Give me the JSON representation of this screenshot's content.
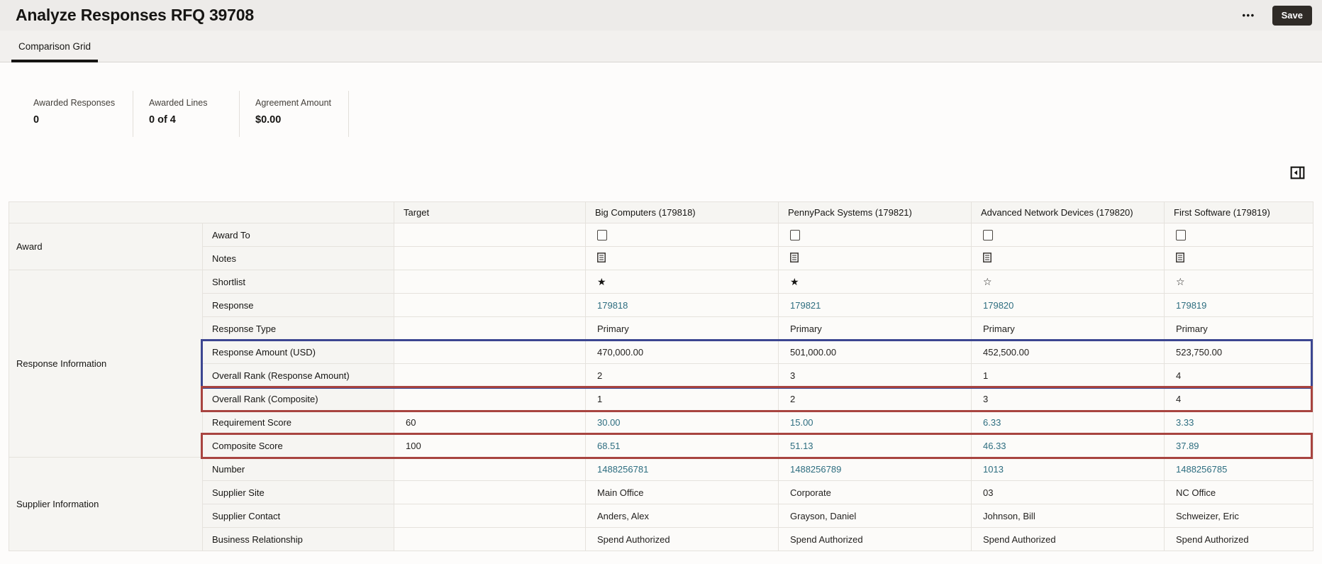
{
  "header": {
    "title": "Analyze Responses RFQ 39708",
    "more_label": "•••",
    "save_label": "Save"
  },
  "tabs": [
    {
      "label": "Comparison Grid",
      "active": true
    }
  ],
  "stats": [
    {
      "label": "Awarded Responses",
      "value": "0"
    },
    {
      "label": "Awarded Lines",
      "value": "0 of 4"
    },
    {
      "label": "Agreement Amount",
      "value": "$0.00"
    }
  ],
  "grid": {
    "columns": [
      "Target",
      "Big Computers (179818)",
      "PennyPack Systems (179821)",
      "Advanced Network Devices (179820)",
      "First Software (179819)"
    ],
    "groups": [
      {
        "label": "Award",
        "span": 2
      },
      {
        "label": "Response Information",
        "span": 8
      },
      {
        "label": "Supplier Information",
        "span": 4
      }
    ],
    "rows": [
      {
        "label": "Award To",
        "type": "checkbox",
        "target": "",
        "values": [
          "",
          "",
          "",
          ""
        ]
      },
      {
        "label": "Notes",
        "type": "note",
        "target": "",
        "values": [
          "",
          "",
          "",
          ""
        ]
      },
      {
        "label": "Shortlist",
        "type": "star",
        "target": "",
        "values": [
          true,
          true,
          false,
          false
        ]
      },
      {
        "label": "Response",
        "type": "link",
        "target": "",
        "values": [
          "179818",
          "179821",
          "179820",
          "179819"
        ]
      },
      {
        "label": "Response Type",
        "type": "text",
        "target": "",
        "values": [
          "Primary",
          "Primary",
          "Primary",
          "Primary"
        ]
      },
      {
        "label": "Response Amount (USD)",
        "type": "text",
        "target": "",
        "values": [
          "470,000.00",
          "501,000.00",
          "452,500.00",
          "523,750.00"
        ],
        "highlight": "blue"
      },
      {
        "label": "Overall Rank (Response Amount)",
        "type": "text",
        "target": "",
        "values": [
          "2",
          "3",
          "1",
          "4"
        ],
        "highlight": "blue"
      },
      {
        "label": "Overall Rank (Composite)",
        "type": "text",
        "target": "",
        "values": [
          "1",
          "2",
          "3",
          "4"
        ],
        "highlight": "red"
      },
      {
        "label": "Requirement Score",
        "type": "link",
        "target": "60",
        "values": [
          "30.00",
          "15.00",
          "6.33",
          "3.33"
        ]
      },
      {
        "label": "Composite Score",
        "type": "link",
        "target": "100",
        "values": [
          "68.51",
          "51.13",
          "46.33",
          "37.89"
        ],
        "highlight": "red"
      },
      {
        "label": "Number",
        "type": "link",
        "target": "",
        "values": [
          "1488256781",
          "1488256789",
          "1013",
          "1488256785"
        ]
      },
      {
        "label": "Supplier Site",
        "type": "text",
        "target": "",
        "values": [
          "Main Office",
          "Corporate",
          "03",
          "NC Office"
        ]
      },
      {
        "label": "Supplier Contact",
        "type": "text",
        "target": "",
        "values": [
          "Anders, Alex",
          "Grayson, Daniel",
          "Johnson, Bill",
          "Schweizer, Eric"
        ]
      },
      {
        "label": "Business Relationship",
        "type": "text",
        "target": "",
        "values": [
          "Spend Authorized",
          "Spend Authorized",
          "Spend Authorized",
          "Spend Authorized"
        ]
      }
    ]
  },
  "colors": {
    "link": "#2e6e80",
    "highlight_blue": "#3c4691",
    "highlight_red": "#a84440",
    "save_button_bg": "#2f2b27",
    "tab_underline": "#161513"
  }
}
